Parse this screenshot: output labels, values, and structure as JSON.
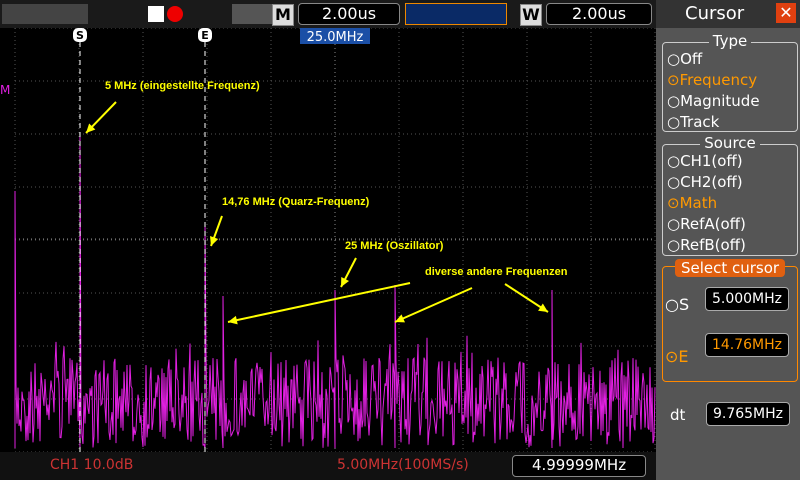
{
  "toolbar": {
    "mode": "M",
    "time_base": "2.00us",
    "window_mode": "W",
    "window_time": "2.00us"
  },
  "display": {
    "cursor_s": "S",
    "cursor_e": "E",
    "center_freq": "25.0MHz",
    "math_marker": "M",
    "annotations": [
      "5 MHz (eingestellte Frequenz)",
      "14,76 MHz (Quarz-Frequenz)",
      "25 MHz (Oszillator)",
      "diverse andere Frequenzen"
    ]
  },
  "status_bar": {
    "channel": "CH1 10.0dB",
    "sample": "5.00MHz(100MS/s)",
    "frequency": "4.99999MHz"
  },
  "panel": {
    "title": "Cursor",
    "type_group": {
      "title": "Type",
      "options": [
        "Off",
        "Frequency",
        "Magnitude",
        "Track"
      ]
    },
    "source_group": {
      "title": "Source",
      "options": [
        "CH1(off)",
        "CH2(off)",
        "Math",
        "RefA(off)",
        "RefB(off)"
      ]
    },
    "select_group": {
      "title": "Select cursor",
      "s_label": "S",
      "s_value": "5.000MHz",
      "e_label": "E",
      "e_value": "14.76MHz"
    },
    "dt_label": "dt",
    "dt_value": "9.765MHz"
  }
}
